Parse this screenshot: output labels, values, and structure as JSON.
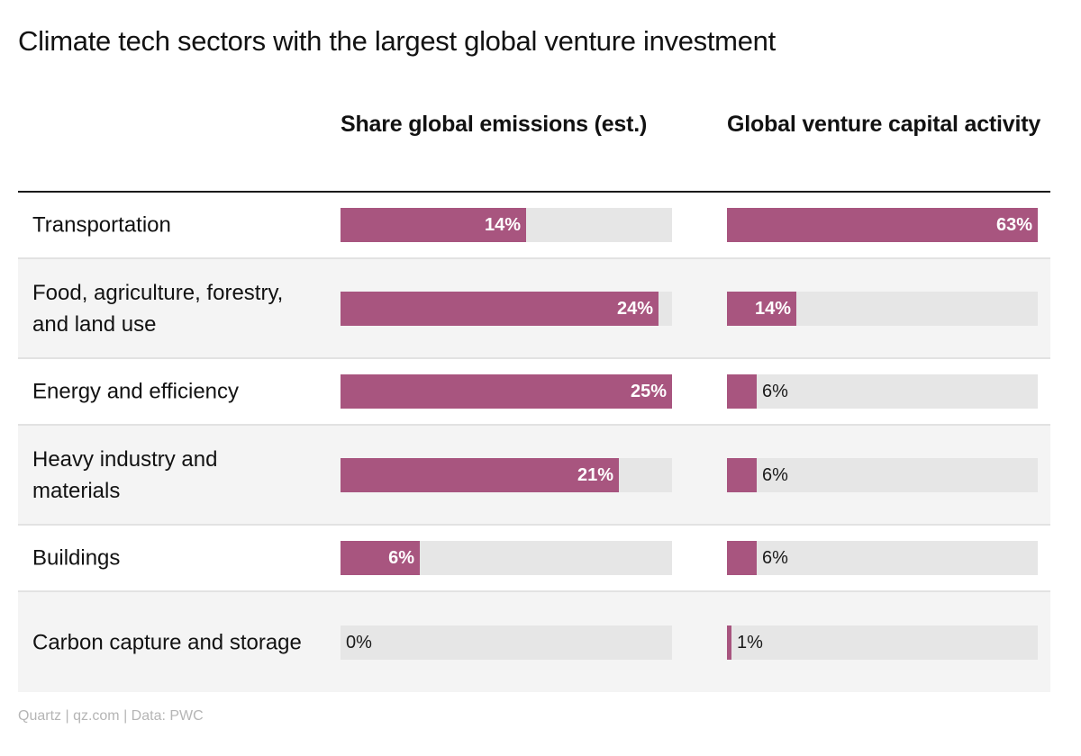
{
  "title": "Climate tech sectors with the largest global venture investment",
  "source": "Quartz | qz.com | Data: PWC",
  "colors": {
    "bar": "#a8557f",
    "track": "#e6e6e6",
    "row_shade": "#f4f4f4"
  },
  "chart_data": {
    "type": "bar",
    "orientation": "horizontal",
    "title": "Climate tech sectors with the largest global venture investment",
    "categories": [
      "Transportation",
      "Food, agriculture, forestry, and land use",
      "Energy and efficiency",
      "Heavy industry and materials",
      "Buildings",
      "Carbon capture and storage"
    ],
    "series": [
      {
        "name": "Share global emissions (est.)",
        "values": [
          14,
          24,
          25,
          21,
          6,
          0
        ],
        "labels": [
          "14%",
          "24%",
          "25%",
          "21%",
          "6%",
          "0%"
        ],
        "max": 25
      },
      {
        "name": "Global venture capital activity",
        "values": [
          63,
          14,
          6,
          6,
          6,
          1
        ],
        "labels": [
          "63%",
          "14%",
          "6%",
          "6%",
          "6%",
          "1%"
        ],
        "max": 63
      }
    ],
    "unit": "%",
    "grid": false,
    "legend": "none"
  }
}
